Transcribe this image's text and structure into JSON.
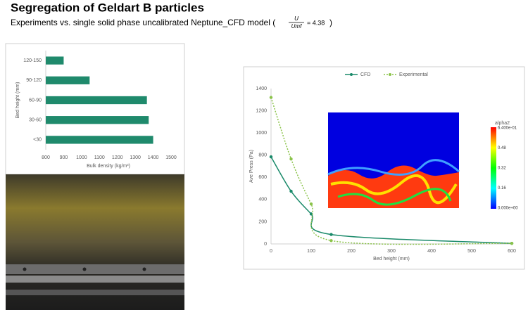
{
  "title": "Segregation of Geldart B particles",
  "subtitle": "Experiments vs. single solid phase uncalibrated Neptune_CFD model (",
  "formula": {
    "numerator": "U",
    "denominator": "Umf",
    "value": "= 4.38",
    "close": ")"
  },
  "chart_data": [
    {
      "type": "bar",
      "orientation": "horizontal",
      "categories": [
        "120-150",
        "90-120",
        "60-90",
        "30-60",
        "<30"
      ],
      "values": [
        900,
        1045,
        1365,
        1375,
        1400
      ],
      "color": "#1f8a6c",
      "x_label": "Bulk density (kg/m³)",
      "y_label": "Bed height (mm)",
      "xlim": [
        800,
        1500
      ],
      "xticks": [
        800,
        900,
        1000,
        1100,
        1200,
        1300,
        1400,
        1500
      ]
    },
    {
      "type": "line",
      "x_label": "Bed height (mm)",
      "y_label": "Ave Press (Pa)",
      "series": [
        {
          "name": "CFD",
          "color": "#1a8a6a",
          "x": [
            0,
            50,
            100,
            150,
            600
          ],
          "values": [
            785,
            475,
            270,
            85,
            5
          ]
        },
        {
          "name": "Experimental",
          "color": "#8bc34a",
          "dashed": true,
          "x": [
            0,
            50,
            100,
            150,
            600
          ],
          "values": [
            1320,
            765,
            360,
            30,
            5
          ]
        }
      ],
      "xlim": [
        0,
        600
      ],
      "xticks": [
        0,
        100,
        200,
        300,
        400,
        500,
        600
      ],
      "ylim": [
        0,
        1400
      ],
      "yticks": [
        0,
        200,
        400,
        600,
        800,
        1000,
        1200,
        1400
      ],
      "legend": "top"
    }
  ],
  "contour_image": {
    "title": "alpha2",
    "colorbar_labels": [
      "6.400e-01",
      "0.48",
      "0.32",
      "0.16",
      "0.000e+00"
    ]
  }
}
